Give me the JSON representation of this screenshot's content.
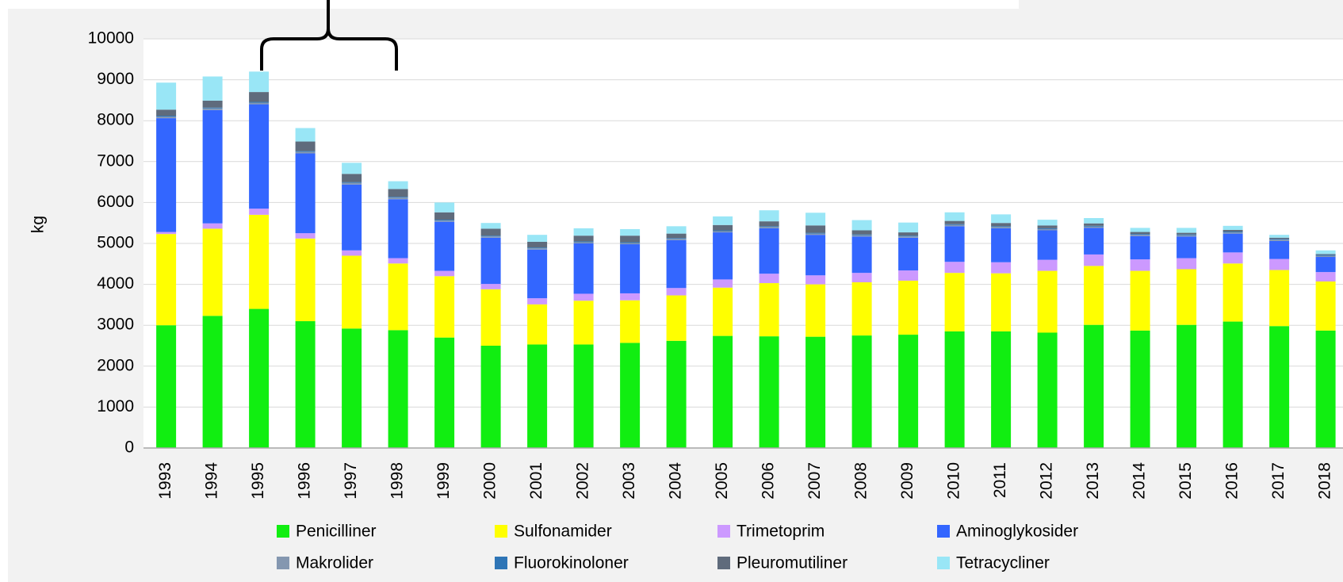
{
  "chart_data": {
    "type": "stacked_bar",
    "y_label": "kg",
    "categories": [
      "1993",
      "1994",
      "1995",
      "1996",
      "1997",
      "1998",
      "1999",
      "2000",
      "2001",
      "2002",
      "2003",
      "2004",
      "2005",
      "2006",
      "2007",
      "2008",
      "2009",
      "2010",
      "2011",
      "2012",
      "2013",
      "2014",
      "2015",
      "2016",
      "2017",
      "2018"
    ],
    "ylim": [
      0,
      10000
    ],
    "yticks": [
      0,
      1000,
      2000,
      3000,
      4000,
      5000,
      6000,
      7000,
      8000,
      9000,
      10000
    ],
    "grid": true,
    "legend": "bottom",
    "series": [
      {
        "name": "Penicilliner",
        "color": "#11ee11",
        "values": [
          3000,
          3230,
          3400,
          3100,
          2920,
          2880,
          2700,
          2500,
          2530,
          2530,
          2570,
          2620,
          2740,
          2730,
          2720,
          2750,
          2770,
          2850,
          2850,
          2820,
          3010,
          2870,
          3010,
          3090,
          2980,
          2870
        ]
      },
      {
        "name": "Sulfonamider",
        "color": "#ffff00",
        "values": [
          2230,
          2130,
          2300,
          2020,
          1780,
          1630,
          1500,
          1380,
          980,
          1070,
          1040,
          1110,
          1180,
          1300,
          1280,
          1300,
          1320,
          1430,
          1420,
          1510,
          1440,
          1460,
          1360,
          1420,
          1370,
          1200
        ]
      },
      {
        "name": "Trimetoprim",
        "color": "#cc99ff",
        "values": [
          50,
          130,
          150,
          130,
          130,
          130,
          130,
          130,
          150,
          170,
          170,
          180,
          200,
          230,
          220,
          230,
          250,
          270,
          270,
          270,
          280,
          280,
          270,
          270,
          270,
          230
        ]
      },
      {
        "name": "Aminoglykosider",
        "color": "#3366ff",
        "values": [
          2780,
          2770,
          2550,
          1950,
          1610,
          1440,
          1200,
          1130,
          1190,
          1230,
          1200,
          1170,
          1150,
          1110,
          990,
          890,
          800,
          870,
          830,
          720,
          650,
          570,
          530,
          460,
          440,
          370
        ]
      },
      {
        "name": "Makrolider",
        "color": "#8497b0",
        "values": [
          40,
          40,
          40,
          40,
          40,
          40,
          30,
          30,
          30,
          30,
          30,
          30,
          30,
          30,
          30,
          30,
          30,
          30,
          30,
          30,
          30,
          30,
          30,
          30,
          30,
          30
        ]
      },
      {
        "name": "Fluorokinoloner",
        "color": "#2e75b6",
        "values": [
          20,
          20,
          20,
          20,
          20,
          20,
          20,
          20,
          20,
          20,
          20,
          20,
          20,
          20,
          20,
          20,
          20,
          20,
          20,
          20,
          20,
          20,
          20,
          20,
          20,
          20
        ]
      },
      {
        "name": "Pleuromutiliner",
        "color": "#5f6b7c",
        "values": [
          150,
          170,
          240,
          230,
          200,
          190,
          180,
          170,
          140,
          140,
          160,
          110,
          130,
          120,
          180,
          100,
          80,
          80,
          80,
          70,
          60,
          50,
          40,
          40,
          30,
          20
        ]
      },
      {
        "name": "Tetracycliner",
        "color": "#99e6f6",
        "values": [
          660,
          590,
          500,
          330,
          270,
          190,
          240,
          140,
          170,
          180,
          160,
          180,
          210,
          270,
          310,
          250,
          240,
          210,
          210,
          140,
          130,
          100,
          120,
          100,
          70,
          90
        ]
      }
    ]
  }
}
